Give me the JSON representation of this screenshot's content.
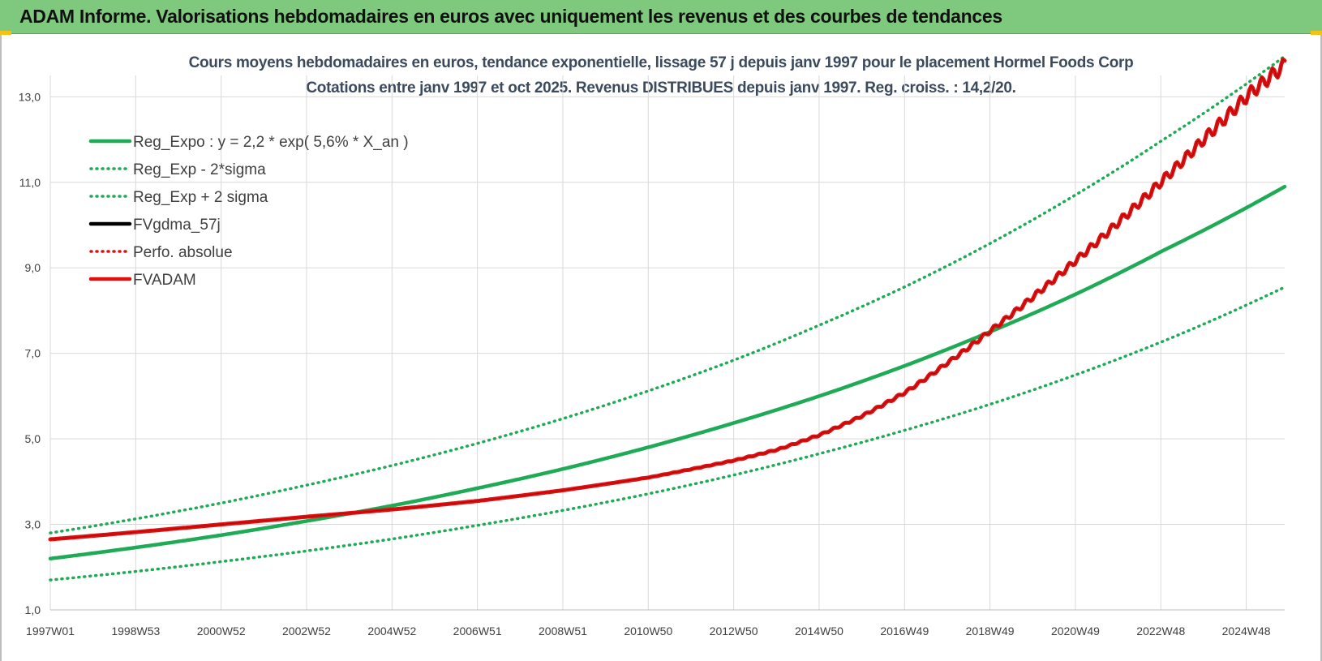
{
  "header": {
    "title": "ADAM Informe. Valorisations hebdomadaires en euros avec uniquement les revenus et des courbes de tendances"
  },
  "colors": {
    "banner": "#7fc97f",
    "green": "#1faa55",
    "red": "#e01010",
    "black": "#000000",
    "grid": "#d9d9d9"
  },
  "chart_data": {
    "type": "line",
    "title_line1": "Cours moyens hebdomadaires en euros, tendance exponentielle, lissage 57 j depuis janv 1997 pour le placement Hormel Foods Corp",
    "title_line2": "Cotations entre janv 1997 et oct 2025. Revenus DISTRIBUES depuis janv 1997.  Reg. croiss. : 14,2/20.",
    "x_tick_labels": [
      "1997W01",
      "1998W53",
      "2000W52",
      "2002W52",
      "2004W52",
      "2006W51",
      "2008W51",
      "2010W50",
      "2012W50",
      "2014W50",
      "2016W49",
      "2018W49",
      "2020W49",
      "2022W48",
      "2024W48"
    ],
    "x_range": [
      1997.0,
      2025.85
    ],
    "ylim": [
      1.0,
      13.5
    ],
    "y_ticks": [
      "1,0",
      "3,0",
      "5,0",
      "7,0",
      "9,0",
      "11,0",
      "13,0"
    ],
    "y_tick_values": [
      1,
      3,
      5,
      7,
      9,
      11,
      13
    ],
    "grid": true,
    "legend_position": "top-left",
    "legend": [
      {
        "label": "Reg_Expo : y = 2,2 * exp( 5,6% *  X_an )",
        "color": "#1faa55",
        "style": "solid"
      },
      {
        "label": "Reg_Exp - 2*sigma",
        "color": "#1faa55",
        "style": "dotted"
      },
      {
        "label": "Reg_Exp + 2 sigma",
        "color": "#1faa55",
        "style": "dotted"
      },
      {
        "label": "FVgdma_57j",
        "color": "#000000",
        "style": "solid"
      },
      {
        "label": "Perfo. absolue",
        "color": "#e01010",
        "style": "dotted"
      },
      {
        "label": "FVADAM",
        "color": "#e01010",
        "style": "solid"
      }
    ],
    "series": [
      {
        "name": "Reg_Expo : y = 2,2 * exp( 5,6% *  X_an )",
        "x": [
          1997,
          1999,
          2001,
          2003,
          2005,
          2007,
          2009,
          2011,
          2013,
          2015,
          2017,
          2019,
          2021,
          2023,
          2025.85
        ],
        "values": [
          2.2,
          2.46,
          2.75,
          3.08,
          3.44,
          3.85,
          4.3,
          4.81,
          5.38,
          6.01,
          6.72,
          7.52,
          8.4,
          9.4,
          10.9
        ]
      },
      {
        "name": "Reg_Exp - 2*sigma",
        "x": [
          1997,
          1999,
          2001,
          2003,
          2005,
          2007,
          2009,
          2011,
          2013,
          2015,
          2017,
          2019,
          2021,
          2023,
          2025.85
        ],
        "values": [
          1.7,
          1.9,
          2.13,
          2.38,
          2.66,
          2.98,
          3.33,
          3.72,
          4.16,
          4.66,
          5.21,
          5.82,
          6.51,
          7.28,
          8.55
        ]
      },
      {
        "name": "Reg_Exp + 2 sigma",
        "x": [
          1997,
          1999,
          2001,
          2003,
          2005,
          2007,
          2009,
          2011,
          2013,
          2015,
          2017,
          2019,
          2021,
          2023,
          2025.85
        ],
        "values": [
          2.8,
          3.13,
          3.5,
          3.92,
          4.38,
          4.9,
          5.48,
          6.13,
          6.85,
          7.67,
          8.57,
          9.59,
          10.73,
          11.99,
          13.95
        ]
      },
      {
        "name": "FVADAM",
        "x": [
          1997,
          1999,
          2001,
          2003,
          2005,
          2007,
          2009,
          2011,
          2013,
          2014,
          2015,
          2016,
          2017,
          2018,
          2019,
          2020,
          2021,
          2022,
          2023,
          2024,
          2025,
          2025.85
        ],
        "values": [
          2.65,
          2.82,
          3.0,
          3.18,
          3.35,
          3.55,
          3.8,
          4.1,
          4.5,
          4.75,
          5.1,
          5.55,
          6.1,
          6.8,
          7.55,
          8.35,
          9.2,
          10.1,
          11.05,
          12.05,
          13.05,
          13.75
        ]
      }
    ]
  }
}
